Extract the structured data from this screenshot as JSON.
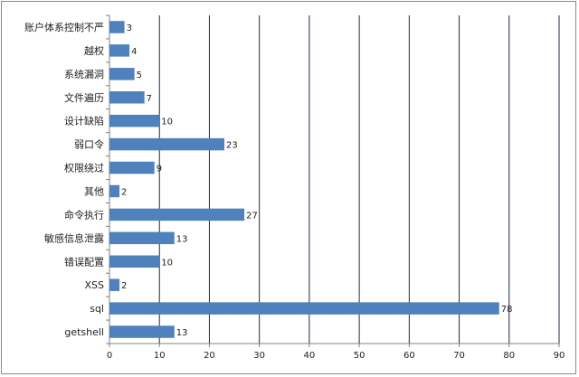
{
  "chart_data": {
    "type": "bar",
    "orientation": "horizontal",
    "title": "",
    "xlabel": "",
    "ylabel": "",
    "categories": [
      "账户体系控制不严",
      "越权",
      "系统漏洞",
      "文件遍历",
      "设计缺陷",
      "弱口令",
      "权限绕过",
      "其他",
      "命令执行",
      "敏感信息泄露",
      "错误配置",
      "XSS",
      "sql",
      "getshell"
    ],
    "values": [
      3,
      4,
      5,
      7,
      10,
      23,
      9,
      2,
      27,
      13,
      10,
      2,
      78,
      13
    ],
    "xlim": [
      0,
      90
    ],
    "x_ticks": [
      0,
      10,
      20,
      30,
      40,
      50,
      60,
      70,
      80,
      90
    ],
    "grid": "vertical",
    "legend": "none",
    "data_labels": true,
    "colors": {
      "bar": "#4f81bd",
      "grid": "#1f2a44",
      "axis": "#808080"
    }
  }
}
